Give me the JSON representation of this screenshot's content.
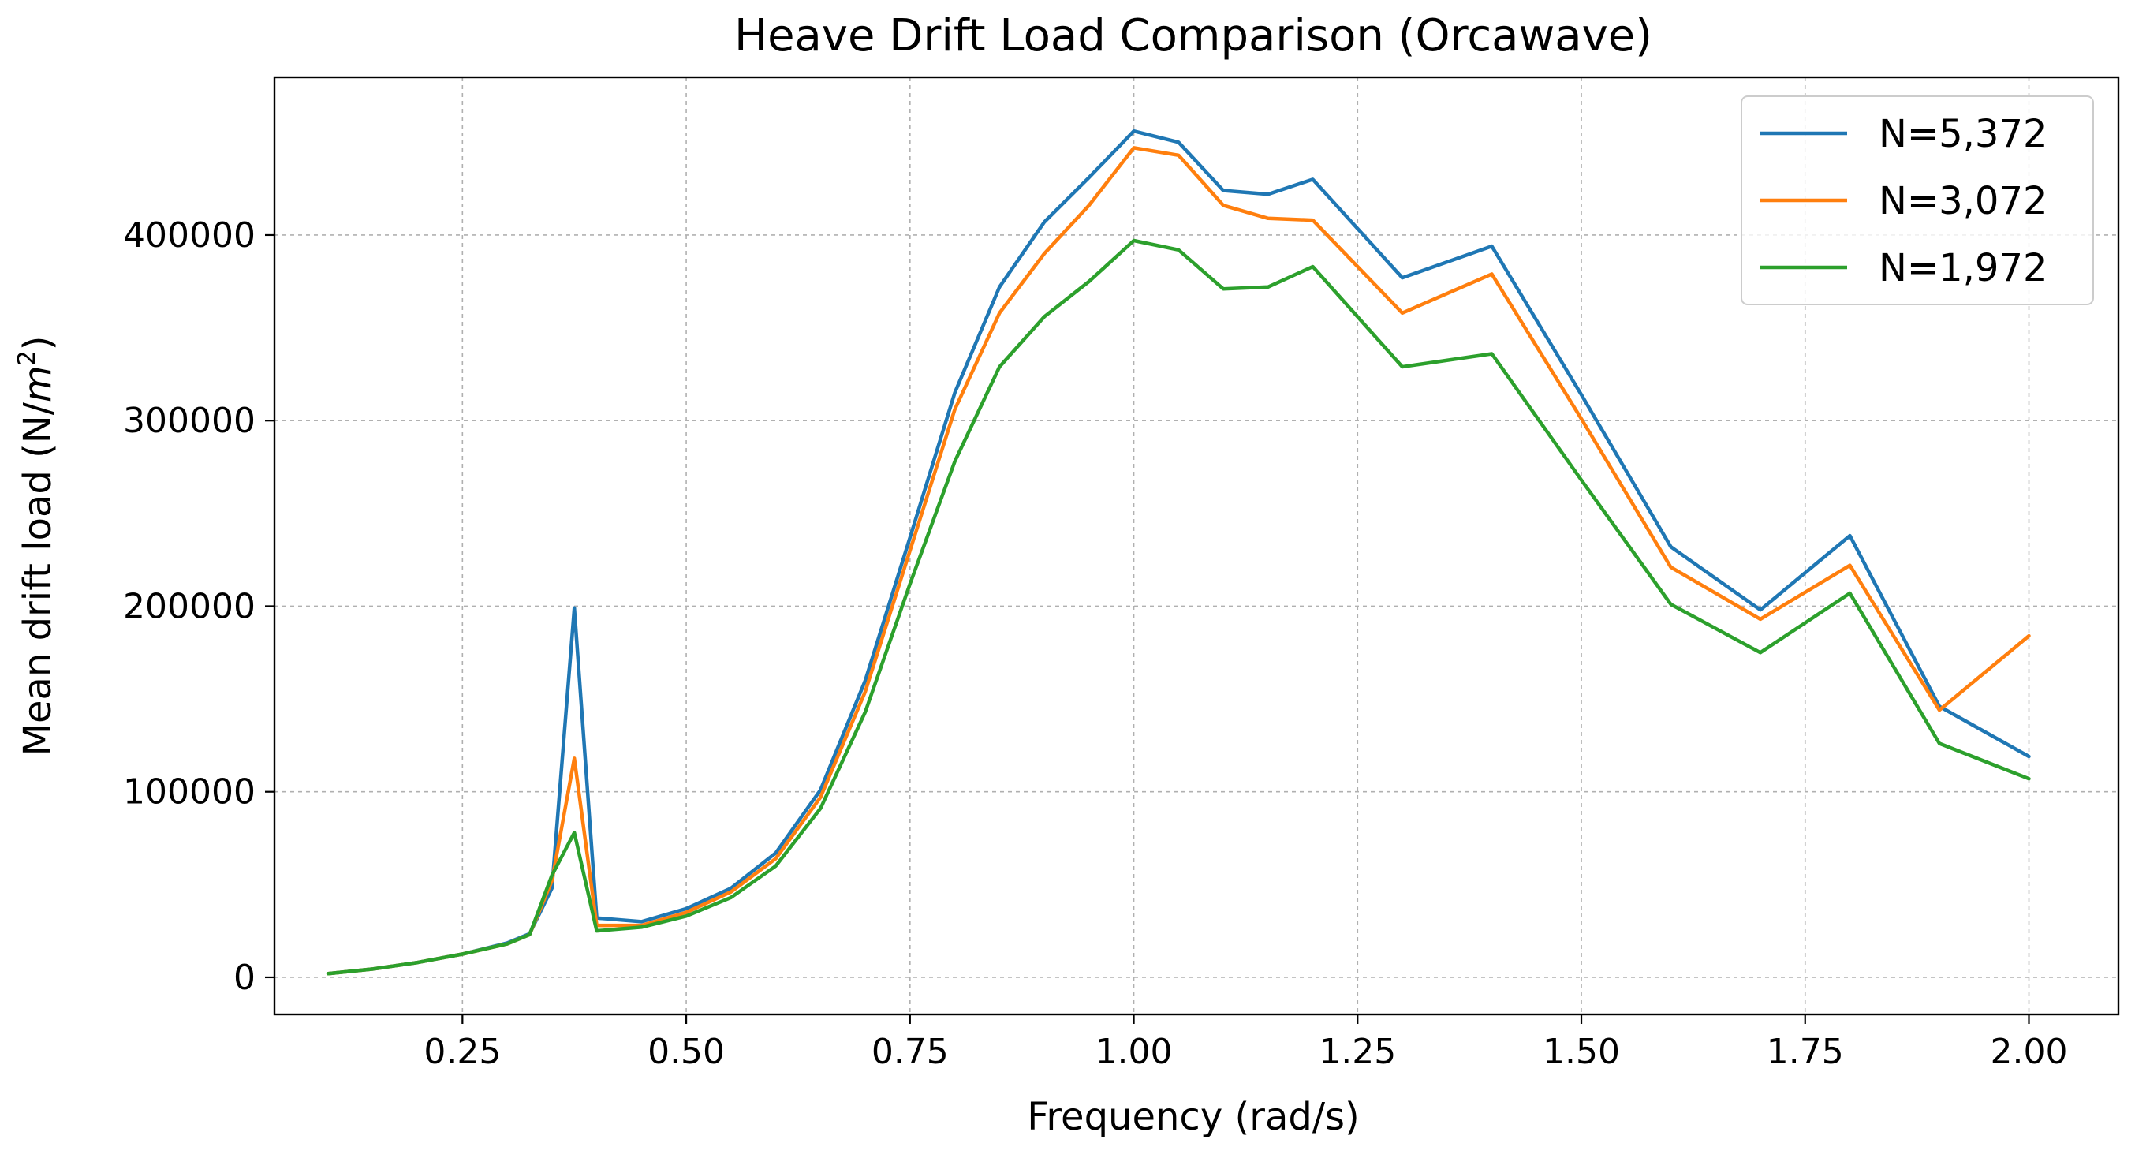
{
  "chart_data": {
    "type": "line",
    "title": "Heave Drift Load Comparison (Orcawave)",
    "xlabel": "Frequency (rad/s)",
    "ylabel_prefix": "Mean drift load (N/",
    "ylabel_var": "m",
    "ylabel_exp": "2",
    "ylabel_suffix": ")",
    "xlim": [
      0.04,
      2.1
    ],
    "ylim": [
      -20000,
      485000
    ],
    "xticks": [
      0.25,
      0.5,
      0.75,
      1.0,
      1.25,
      1.5,
      1.75,
      2.0
    ],
    "xtick_labels": [
      "0.25",
      "0.50",
      "0.75",
      "1.00",
      "1.25",
      "1.50",
      "1.75",
      "2.00"
    ],
    "yticks": [
      0,
      100000,
      200000,
      300000,
      400000
    ],
    "ytick_labels": [
      "0",
      "100000",
      "200000",
      "300000",
      "400000"
    ],
    "grid": true,
    "legend_position": "top-right",
    "series": [
      {
        "name": "N=5,372",
        "color": "#1f77b4",
        "x": [
          0.1,
          0.15,
          0.2,
          0.25,
          0.3,
          0.325,
          0.35,
          0.375,
          0.4,
          0.45,
          0.5,
          0.55,
          0.6,
          0.65,
          0.7,
          0.75,
          0.8,
          0.85,
          0.9,
          0.95,
          1.0,
          1.05,
          1.1,
          1.15,
          1.2,
          1.3,
          1.4,
          1.5,
          1.6,
          1.7,
          1.8,
          1.9,
          2.0
        ],
        "values": [
          2000,
          4500,
          8000,
          12500,
          18500,
          23500,
          48000,
          199000,
          32000,
          30000,
          37000,
          48000,
          67000,
          101000,
          160000,
          237000,
          315000,
          372000,
          407000,
          431000,
          456000,
          450000,
          424000,
          422000,
          430000,
          377000,
          394000,
          314000,
          232000,
          198000,
          238000,
          146000,
          119000
        ]
      },
      {
        "name": "N=3,072",
        "color": "#ff7f0e",
        "x": [
          0.1,
          0.15,
          0.2,
          0.25,
          0.3,
          0.325,
          0.35,
          0.375,
          0.4,
          0.45,
          0.5,
          0.55,
          0.6,
          0.65,
          0.7,
          0.75,
          0.8,
          0.85,
          0.9,
          0.95,
          1.0,
          1.05,
          1.1,
          1.15,
          1.2,
          1.3,
          1.4,
          1.5,
          1.6,
          1.7,
          1.8,
          1.9,
          2.0
        ],
        "values": [
          2000,
          4500,
          8000,
          12500,
          18000,
          23000,
          52000,
          118000,
          28000,
          28000,
          35000,
          46000,
          64000,
          97000,
          154000,
          230000,
          306000,
          358000,
          390000,
          416000,
          447000,
          443000,
          416000,
          409000,
          408000,
          358000,
          379000,
          301000,
          221000,
          193000,
          222000,
          144000,
          184000
        ]
      },
      {
        "name": "N=1,972",
        "color": "#2ca02c",
        "x": [
          0.1,
          0.15,
          0.2,
          0.25,
          0.3,
          0.325,
          0.35,
          0.375,
          0.4,
          0.45,
          0.5,
          0.55,
          0.6,
          0.65,
          0.7,
          0.75,
          0.8,
          0.85,
          0.9,
          0.95,
          1.0,
          1.05,
          1.1,
          1.15,
          1.2,
          1.3,
          1.4,
          1.5,
          1.6,
          1.7,
          1.8,
          1.9,
          2.0
        ],
        "values": [
          2000,
          4500,
          8000,
          12500,
          18000,
          23000,
          55000,
          78000,
          25000,
          27000,
          33000,
          43000,
          60000,
          91000,
          143000,
          212000,
          278000,
          329000,
          356000,
          375000,
          397000,
          392000,
          371000,
          372000,
          383000,
          329000,
          336000,
          268000,
          201000,
          175000,
          207000,
          126000,
          107000
        ]
      }
    ]
  }
}
